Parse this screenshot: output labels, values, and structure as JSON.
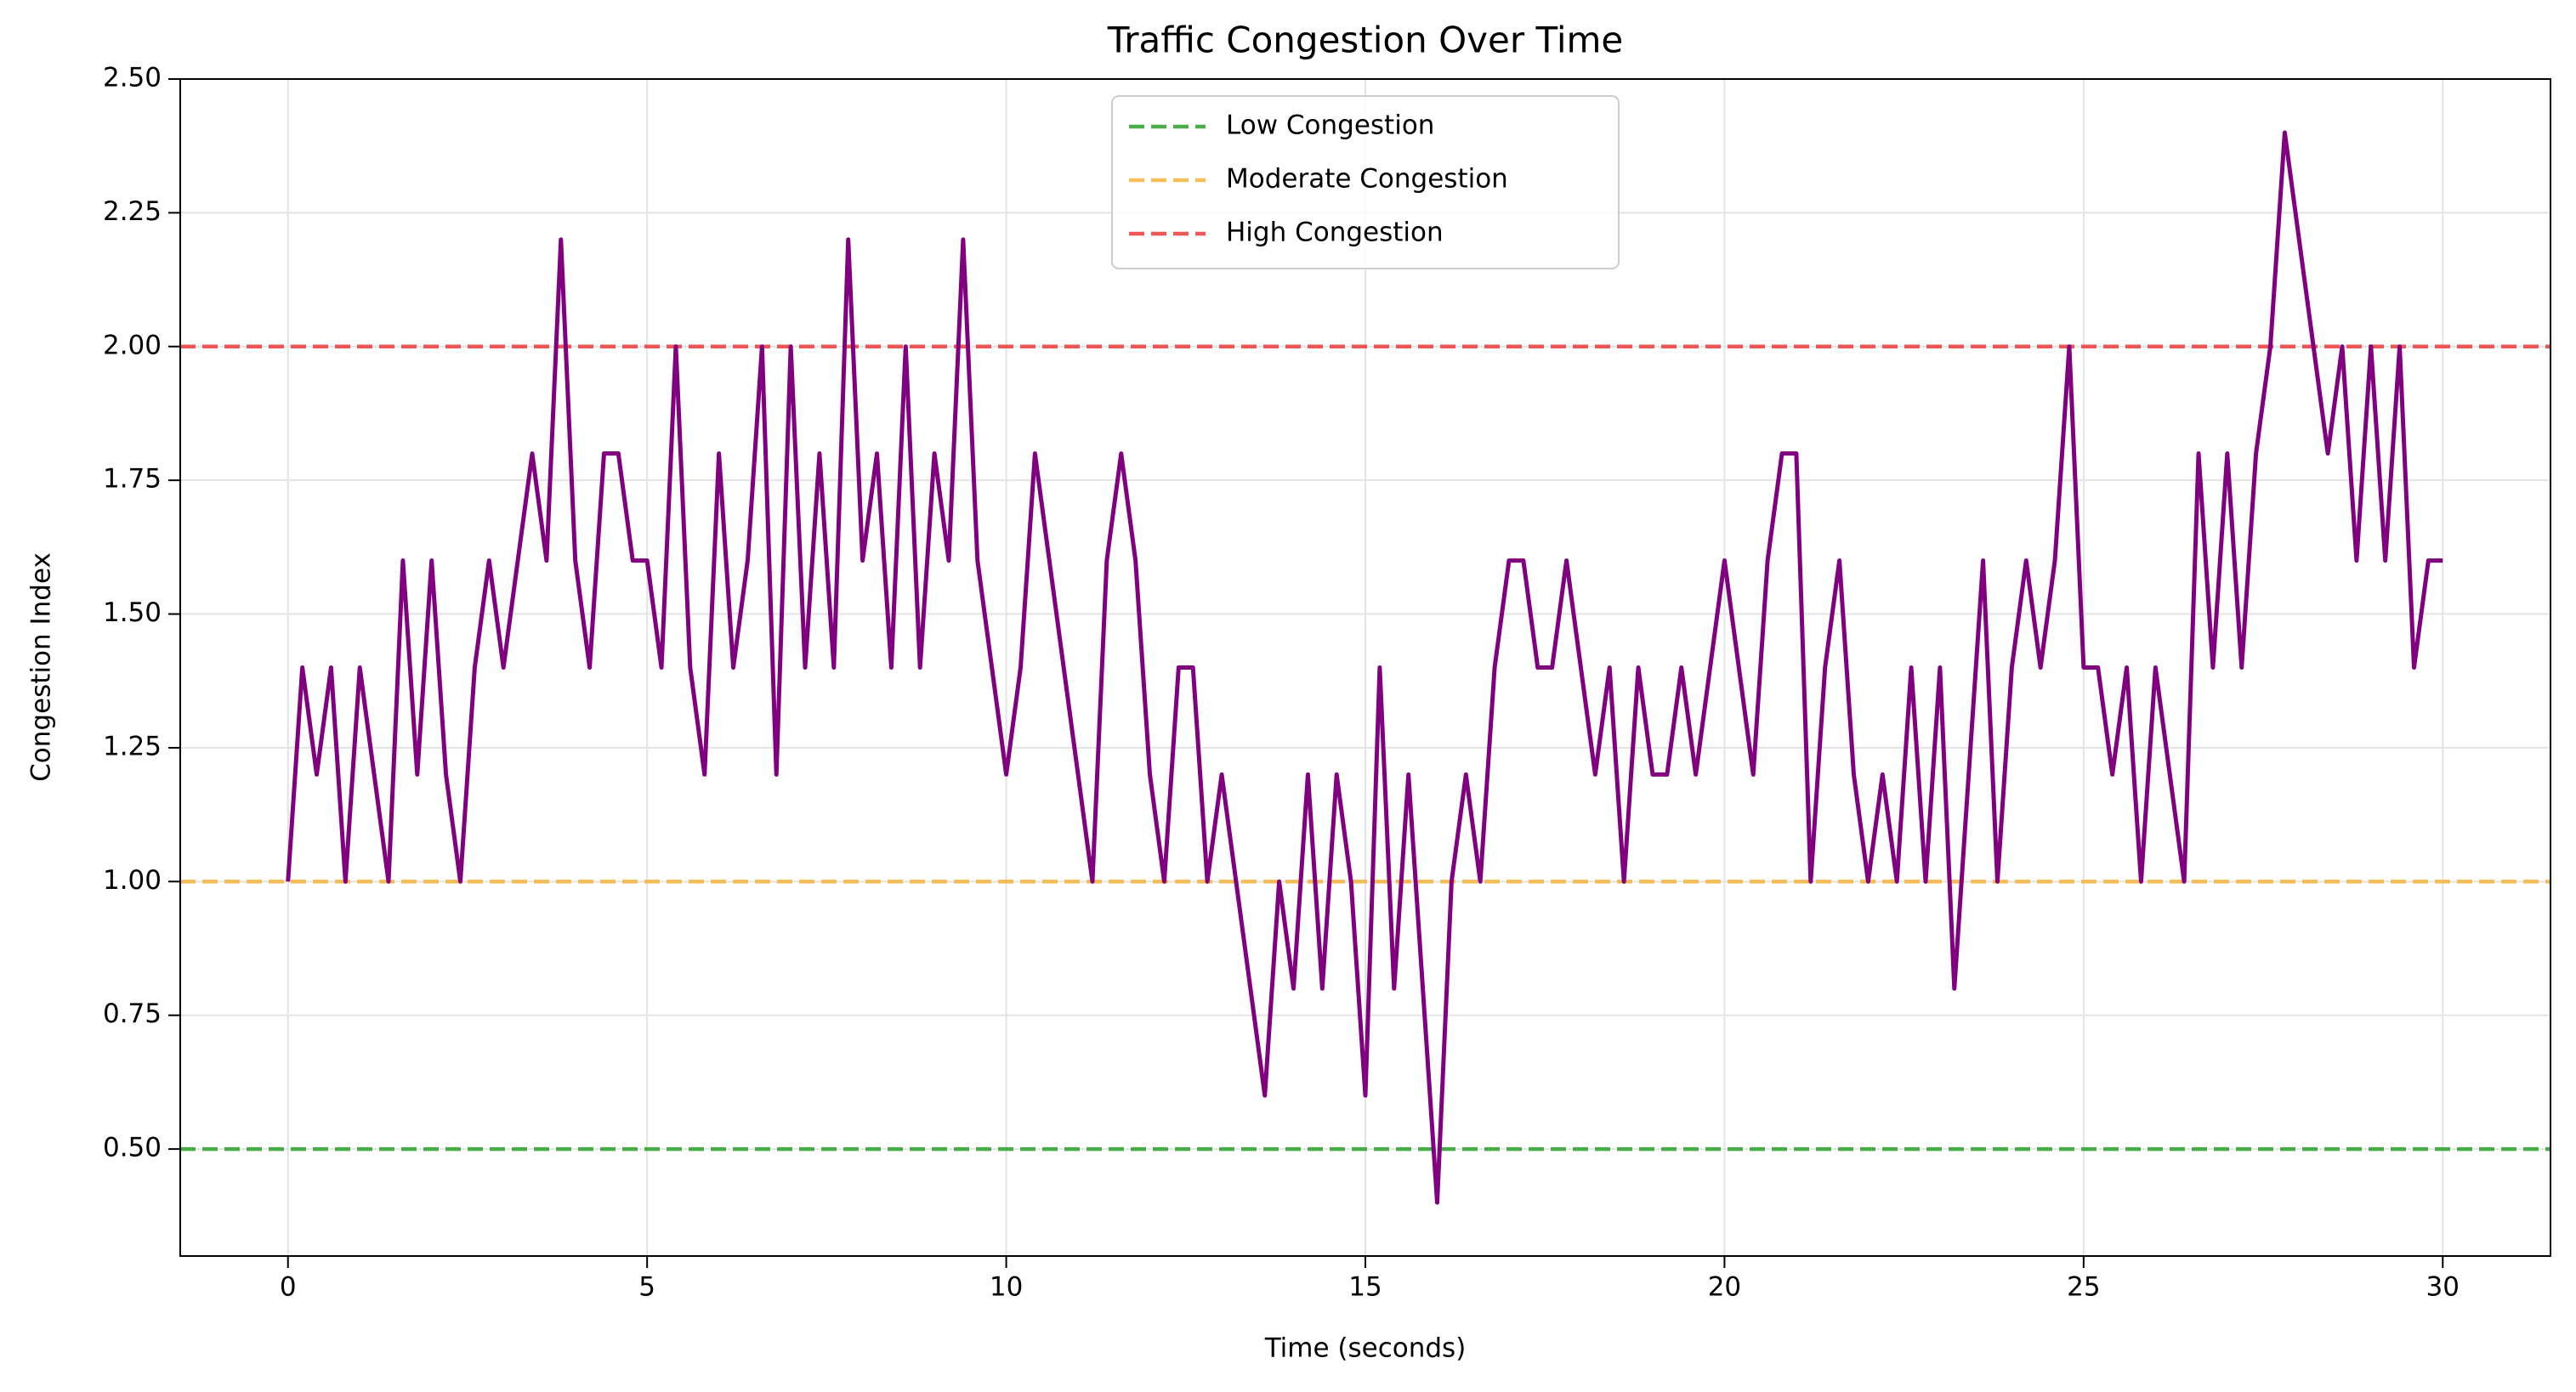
{
  "chart_data": {
    "type": "line",
    "title": "Traffic Congestion Over Time",
    "xlabel": "Time (seconds)",
    "ylabel": "Congestion Index",
    "x": [
      0,
      0.2,
      0.4,
      0.6,
      0.8,
      1,
      1.2,
      1.4,
      1.6,
      1.8,
      2,
      2.2,
      2.4,
      2.6,
      2.8,
      3,
      3.2,
      3.4,
      3.6,
      3.8,
      4,
      4.2,
      4.4,
      4.6,
      4.8,
      5,
      5.2,
      5.4,
      5.6,
      5.8,
      6,
      6.2,
      6.4,
      6.6,
      6.8,
      7,
      7.2,
      7.4,
      7.6,
      7.8,
      8,
      8.2,
      8.4,
      8.6,
      8.8,
      9,
      9.2,
      9.4,
      9.6,
      9.8,
      10,
      10.2,
      10.4,
      10.6,
      10.8,
      11,
      11.2,
      11.4,
      11.6,
      11.8,
      12,
      12.2,
      12.4,
      12.6,
      12.8,
      13,
      13.2,
      13.4,
      13.6,
      13.8,
      14,
      14.2,
      14.4,
      14.6,
      14.8,
      15,
      15.2,
      15.4,
      15.6,
      15.8,
      16,
      16.2,
      16.4,
      16.6,
      16.8,
      17,
      17.2,
      17.4,
      17.6,
      17.8,
      18,
      18.2,
      18.4,
      18.6,
      18.8,
      19,
      19.2,
      19.4,
      19.6,
      19.8,
      20,
      20.2,
      20.4,
      20.6,
      20.8,
      21,
      21.2,
      21.4,
      21.6,
      21.8,
      22,
      22.2,
      22.4,
      22.6,
      22.8,
      23,
      23.2,
      23.4,
      23.6,
      23.8,
      24,
      24.2,
      24.4,
      24.6,
      24.8,
      25,
      25.2,
      25.4,
      25.6,
      25.8,
      26,
      26.2,
      26.4,
      26.6,
      26.8,
      27,
      27.2,
      27.4,
      27.6,
      27.8,
      28,
      28.2,
      28.4,
      28.6,
      28.8,
      29,
      29.2,
      29.4,
      29.6,
      29.8,
      30
    ],
    "series": [
      {
        "name": "Congestion Index",
        "color": "#800080",
        "values": [
          1.0,
          1.4,
          1.2,
          1.4,
          1.0,
          1.4,
          1.2,
          1.0,
          1.6,
          1.2,
          1.6,
          1.2,
          1.0,
          1.4,
          1.6,
          1.4,
          1.6,
          1.8,
          1.6,
          2.2,
          1.6,
          1.4,
          1.8,
          1.8,
          1.6,
          1.6,
          1.4,
          2.0,
          1.4,
          1.2,
          1.8,
          1.4,
          1.6,
          2.0,
          1.2,
          2.0,
          1.4,
          1.8,
          1.4,
          2.2,
          1.6,
          1.8,
          1.4,
          2.0,
          1.4,
          1.8,
          1.6,
          2.2,
          1.6,
          1.4,
          1.2,
          1.4,
          1.8,
          1.6,
          1.4,
          1.2,
          1.0,
          1.6,
          1.8,
          1.6,
          1.2,
          1.0,
          1.4,
          1.4,
          1.0,
          1.2,
          1.0,
          0.8,
          0.6,
          1.0,
          0.8,
          1.2,
          0.8,
          1.2,
          1.0,
          0.6,
          1.4,
          0.8,
          1.2,
          0.8,
          0.4,
          1.0,
          1.2,
          1.0,
          1.4,
          1.6,
          1.6,
          1.4,
          1.4,
          1.6,
          1.4,
          1.2,
          1.4,
          1.0,
          1.4,
          1.2,
          1.2,
          1.4,
          1.2,
          1.4,
          1.6,
          1.4,
          1.2,
          1.6,
          1.8,
          1.8,
          1.0,
          1.4,
          1.6,
          1.2,
          1.0,
          1.2,
          1.0,
          1.4,
          1.0,
          1.4,
          0.8,
          1.2,
          1.6,
          1.0,
          1.4,
          1.6,
          1.4,
          1.6,
          2.0,
          1.4,
          1.4,
          1.2,
          1.4,
          1.0,
          1.4,
          1.2,
          1.0,
          1.8,
          1.4,
          1.8,
          1.4,
          1.8,
          2.0,
          2.4,
          2.2,
          2.0,
          1.8,
          2.0,
          1.6,
          2.0,
          1.6,
          2.0,
          1.4,
          1.6,
          1.6
        ]
      }
    ],
    "reference_lines": [
      {
        "name": "Low Congestion",
        "value": 0.5,
        "color": "#2ca02c"
      },
      {
        "name": "Moderate Congestion",
        "value": 1.0,
        "color": "#f5b43c"
      },
      {
        "name": "High Congestion",
        "value": 2.0,
        "color": "#ee3b3b"
      }
    ],
    "xlim": [
      -1.5,
      31.5
    ],
    "ylim": [
      0.3,
      2.5
    ],
    "xticks": [
      0,
      5,
      10,
      15,
      20,
      25,
      30
    ],
    "yticks": [
      {
        "value": 0.5,
        "label": "0.50"
      },
      {
        "value": 0.75,
        "label": "0.75"
      },
      {
        "value": 1.0,
        "label": "1.00"
      },
      {
        "value": 1.25,
        "label": "1.25"
      },
      {
        "value": 1.5,
        "label": "1.50"
      },
      {
        "value": 1.75,
        "label": "1.75"
      },
      {
        "value": 2.0,
        "label": "2.00"
      },
      {
        "value": 2.25,
        "label": "2.25"
      },
      {
        "value": 2.5,
        "label": "2.50"
      }
    ],
    "grid": true,
    "legend": "upper center"
  }
}
